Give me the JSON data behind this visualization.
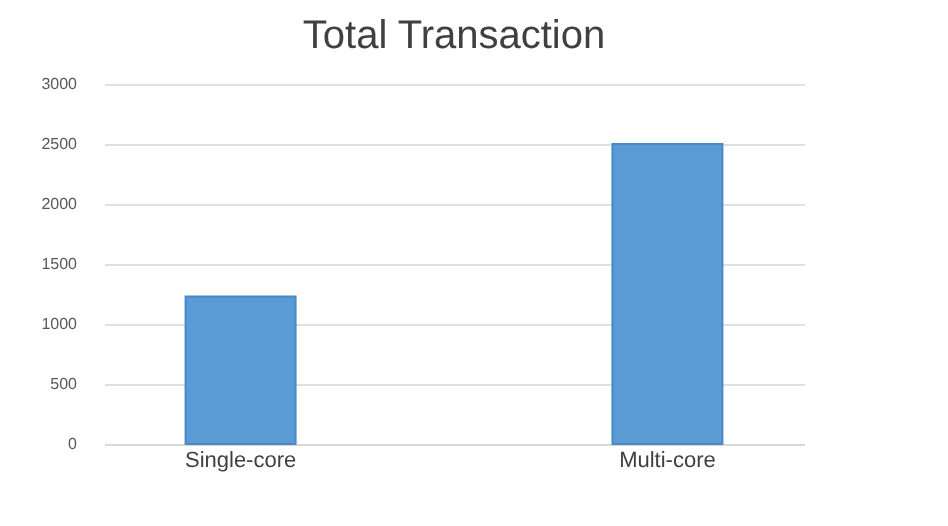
{
  "chart_data": {
    "type": "bar",
    "title": "Total Transaction",
    "categories": [
      "Single-core",
      "Multi-core"
    ],
    "values": [
      1230,
      2500
    ],
    "color": "#5b9bd5",
    "ylim": [
      0,
      3000
    ],
    "yticks": [
      0,
      500,
      1000,
      1500,
      2000,
      2500,
      3000
    ],
    "grid": "y"
  }
}
